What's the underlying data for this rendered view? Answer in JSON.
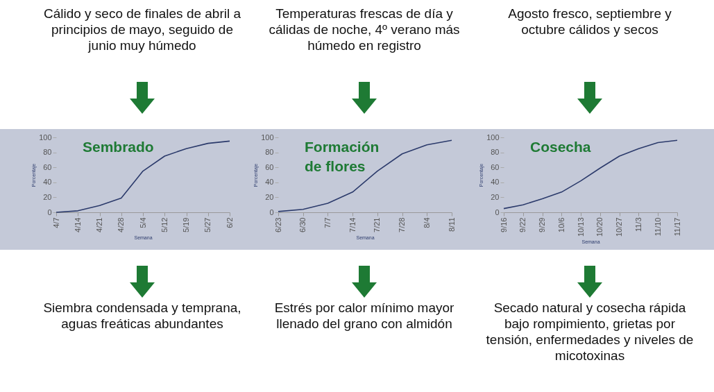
{
  "chart_data": [
    {
      "type": "line",
      "title": "Sembrado",
      "xlabel": "Semana",
      "ylabel": "Porcentaje",
      "categories": [
        "4/7",
        "4/14",
        "4/21",
        "4/28",
        "5/4",
        "5/12",
        "5/19",
        "5/27",
        "6/2"
      ],
      "series": [
        {
          "color": "#2b3a6b",
          "values": [
            0,
            2,
            9,
            19,
            55,
            75,
            85,
            92,
            95
          ]
        }
      ],
      "ylim": [
        0,
        100
      ],
      "yticks": [
        0,
        20,
        40,
        60,
        80,
        100
      ],
      "grid": false,
      "legend": false,
      "annotations": [
        "Cálido y seco de finales de abril a principios de mayo, seguido de junio muy húmedo",
        "Siembra condensada y temprana, aguas freáticas abundantes"
      ]
    },
    {
      "type": "line",
      "title": "Formación\nde flores",
      "xlabel": "Semana",
      "ylabel": "Porcentaje",
      "categories": [
        "6/23",
        "6/30",
        "7/7",
        "7/14",
        "7/21",
        "7/28",
        "8/4",
        "8/11"
      ],
      "series": [
        {
          "color": "#2b3a6b",
          "values": [
            1,
            4,
            12,
            27,
            55,
            78,
            90,
            96
          ]
        }
      ],
      "ylim": [
        0,
        100
      ],
      "yticks": [
        0,
        20,
        40,
        60,
        80,
        100
      ],
      "grid": false,
      "legend": false,
      "annotations": [
        "Temperaturas frescas de día y cálidas de noche, 4º verano más húmedo en registro",
        "Estrés por calor mínimo mayor llenado del grano con almidón"
      ]
    },
    {
      "type": "line",
      "title": "Cosecha",
      "xlabel": "Semana",
      "ylabel": "Porcentaje",
      "categories": [
        "9/16",
        "9/22",
        "9/29",
        "10/6",
        "10/13",
        "10/20",
        "10/27",
        "11/3",
        "11/10",
        "11/17"
      ],
      "series": [
        {
          "color": "#2b3a6b",
          "values": [
            5,
            10,
            18,
            27,
            42,
            59,
            75,
            85,
            93,
            96
          ]
        }
      ],
      "ylim": [
        0,
        100
      ],
      "yticks": [
        0,
        20,
        40,
        60,
        80,
        100
      ],
      "grid": false,
      "legend": false,
      "annotations": [
        "Agosto fresco, septiembre y octubre cálidos y secos",
        "Secado natural y cosecha rápida bajo rompimiento, grietas por tensión, enfermedades y niveles de micotoxinas"
      ]
    }
  ]
}
